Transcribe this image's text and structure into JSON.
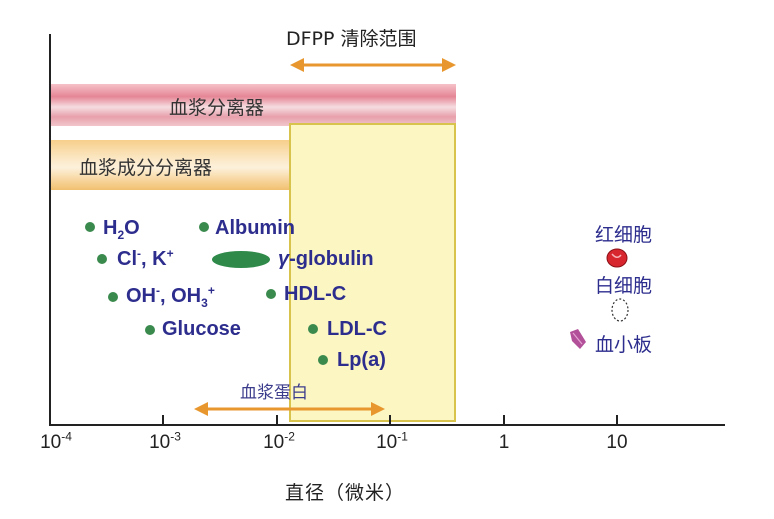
{
  "bands": {
    "plasma_separator": "血浆分离器",
    "plasma_component_separator": "血浆成分分离器"
  },
  "dfpp_range_label": "DFPP 清除范围",
  "plasma_protein_label": "血浆蛋白",
  "x_axis": {
    "title": "直径（微米）",
    "scale": "log",
    "ticks": [
      {
        "base": "10",
        "exp": "-4"
      },
      {
        "base": "10",
        "exp": "-3"
      },
      {
        "base": "10",
        "exp": "-2"
      },
      {
        "base": "10",
        "exp": "-1"
      },
      {
        "base": "1",
        "exp": ""
      },
      {
        "base": "10",
        "exp": ""
      }
    ]
  },
  "particles": {
    "h2o": {
      "main": "H",
      "sub": "2",
      "tail": "O"
    },
    "cl_k": {
      "a": "Cl",
      "a_sup": "-",
      "b": ", K",
      "b_sup": "+"
    },
    "oh": {
      "a": "OH",
      "a_sup": "-",
      "b": ", OH",
      "b_sub": "3",
      "b_sup": "+"
    },
    "glucose": "Glucose",
    "albumin": "Albumin",
    "globulin_symbol": "γ",
    "globulin": "-globulin",
    "hdl": "HDL-C",
    "ldl": "LDL-C",
    "lpa": "Lp(a)"
  },
  "cells": {
    "rbc": "红细胞",
    "wbc": "白细胞",
    "platelet": "血小板"
  },
  "colors": {
    "particle_text": "#2d2d8e",
    "dot": "#3a8a4e",
    "arrow": "#e8962e",
    "rbc": "#d8262f",
    "platelet": "#b2509a",
    "dfpp_box": "#fbf6c2"
  },
  "icons": {
    "rbc": "red-blood-cell-icon",
    "wbc": "white-blood-cell-icon",
    "platelet": "platelet-icon"
  }
}
